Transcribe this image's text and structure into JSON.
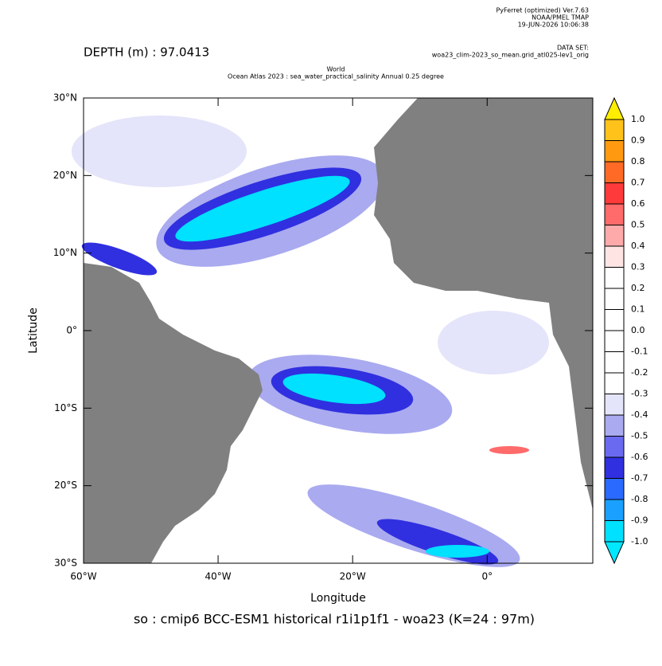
{
  "chart_data": {
    "type": "map",
    "header": [
      "PyFerret (optimized) Ver.7.63",
      "NOAA/PMEL TMAP",
      "19-JUN-2026 10:06:38"
    ],
    "dataset_label": "DATA SET:",
    "dataset": "woa23_clim-2023_so_mean.grid_atl025-lev1_orig",
    "depth": "DEPTH (m) : 97.0413",
    "title": [
      "World",
      "Ocean Atlas 2023 : sea_water_practical_salinity Annual  0.25 degree"
    ],
    "xlabel": "Longitude",
    "ylabel": "Latitude",
    "caption": "so : cmip6 BCC-ESM1 historical r1i1p1f1 - woa23  (K=24 : 97m)",
    "xlim": [
      -60,
      15.7
    ],
    "ylim": [
      -30,
      30
    ],
    "xticks": [
      {
        "value": -60,
        "label": "60°W"
      },
      {
        "value": -40,
        "label": "40°W"
      },
      {
        "value": -20,
        "label": "20°W"
      },
      {
        "value": 0,
        "label": "0°"
      }
    ],
    "yticks": [
      {
        "value": 30,
        "label": "30°N"
      },
      {
        "value": 20,
        "label": "20°N"
      },
      {
        "value": 10,
        "label": "10°N"
      },
      {
        "value": 0,
        "label": "0°"
      },
      {
        "value": -10,
        "label": "10°S"
      },
      {
        "value": -20,
        "label": "20°S"
      },
      {
        "value": -30,
        "label": "30°S"
      }
    ],
    "land_color": "#808080",
    "colorbar": {
      "levels": [
        {
          "value": 1,
          "label": "1.0"
        },
        0.9,
        0.8,
        0.7,
        0.6,
        0.5,
        0.4,
        0.3,
        0.2,
        0.1,
        {
          "value": 0,
          "label": "0.0"
        },
        -0.1,
        -0.2,
        -0.3,
        -0.4,
        -0.5,
        -0.6,
        -0.7,
        -0.8,
        -0.9,
        {
          "value": -1,
          "label": "-1.0"
        }
      ],
      "colors": [
        "#ffee00",
        "#ffc21a",
        "#ff9a10",
        "#ff6a26",
        "#ff3a3a",
        "#ff6b6b",
        "#ffaaaa",
        "#ffe4e4",
        "#ffffff",
        "#ffffff",
        "#ffffff",
        "#ffffff",
        "#ffffff",
        "#ffffff",
        "#e4e4fa",
        "#aaaaf0",
        "#6a6af0",
        "#3030e0",
        "#2a6aff",
        "#1aa0ff",
        "#00e0ff",
        "#00e8ff"
      ]
    }
  }
}
